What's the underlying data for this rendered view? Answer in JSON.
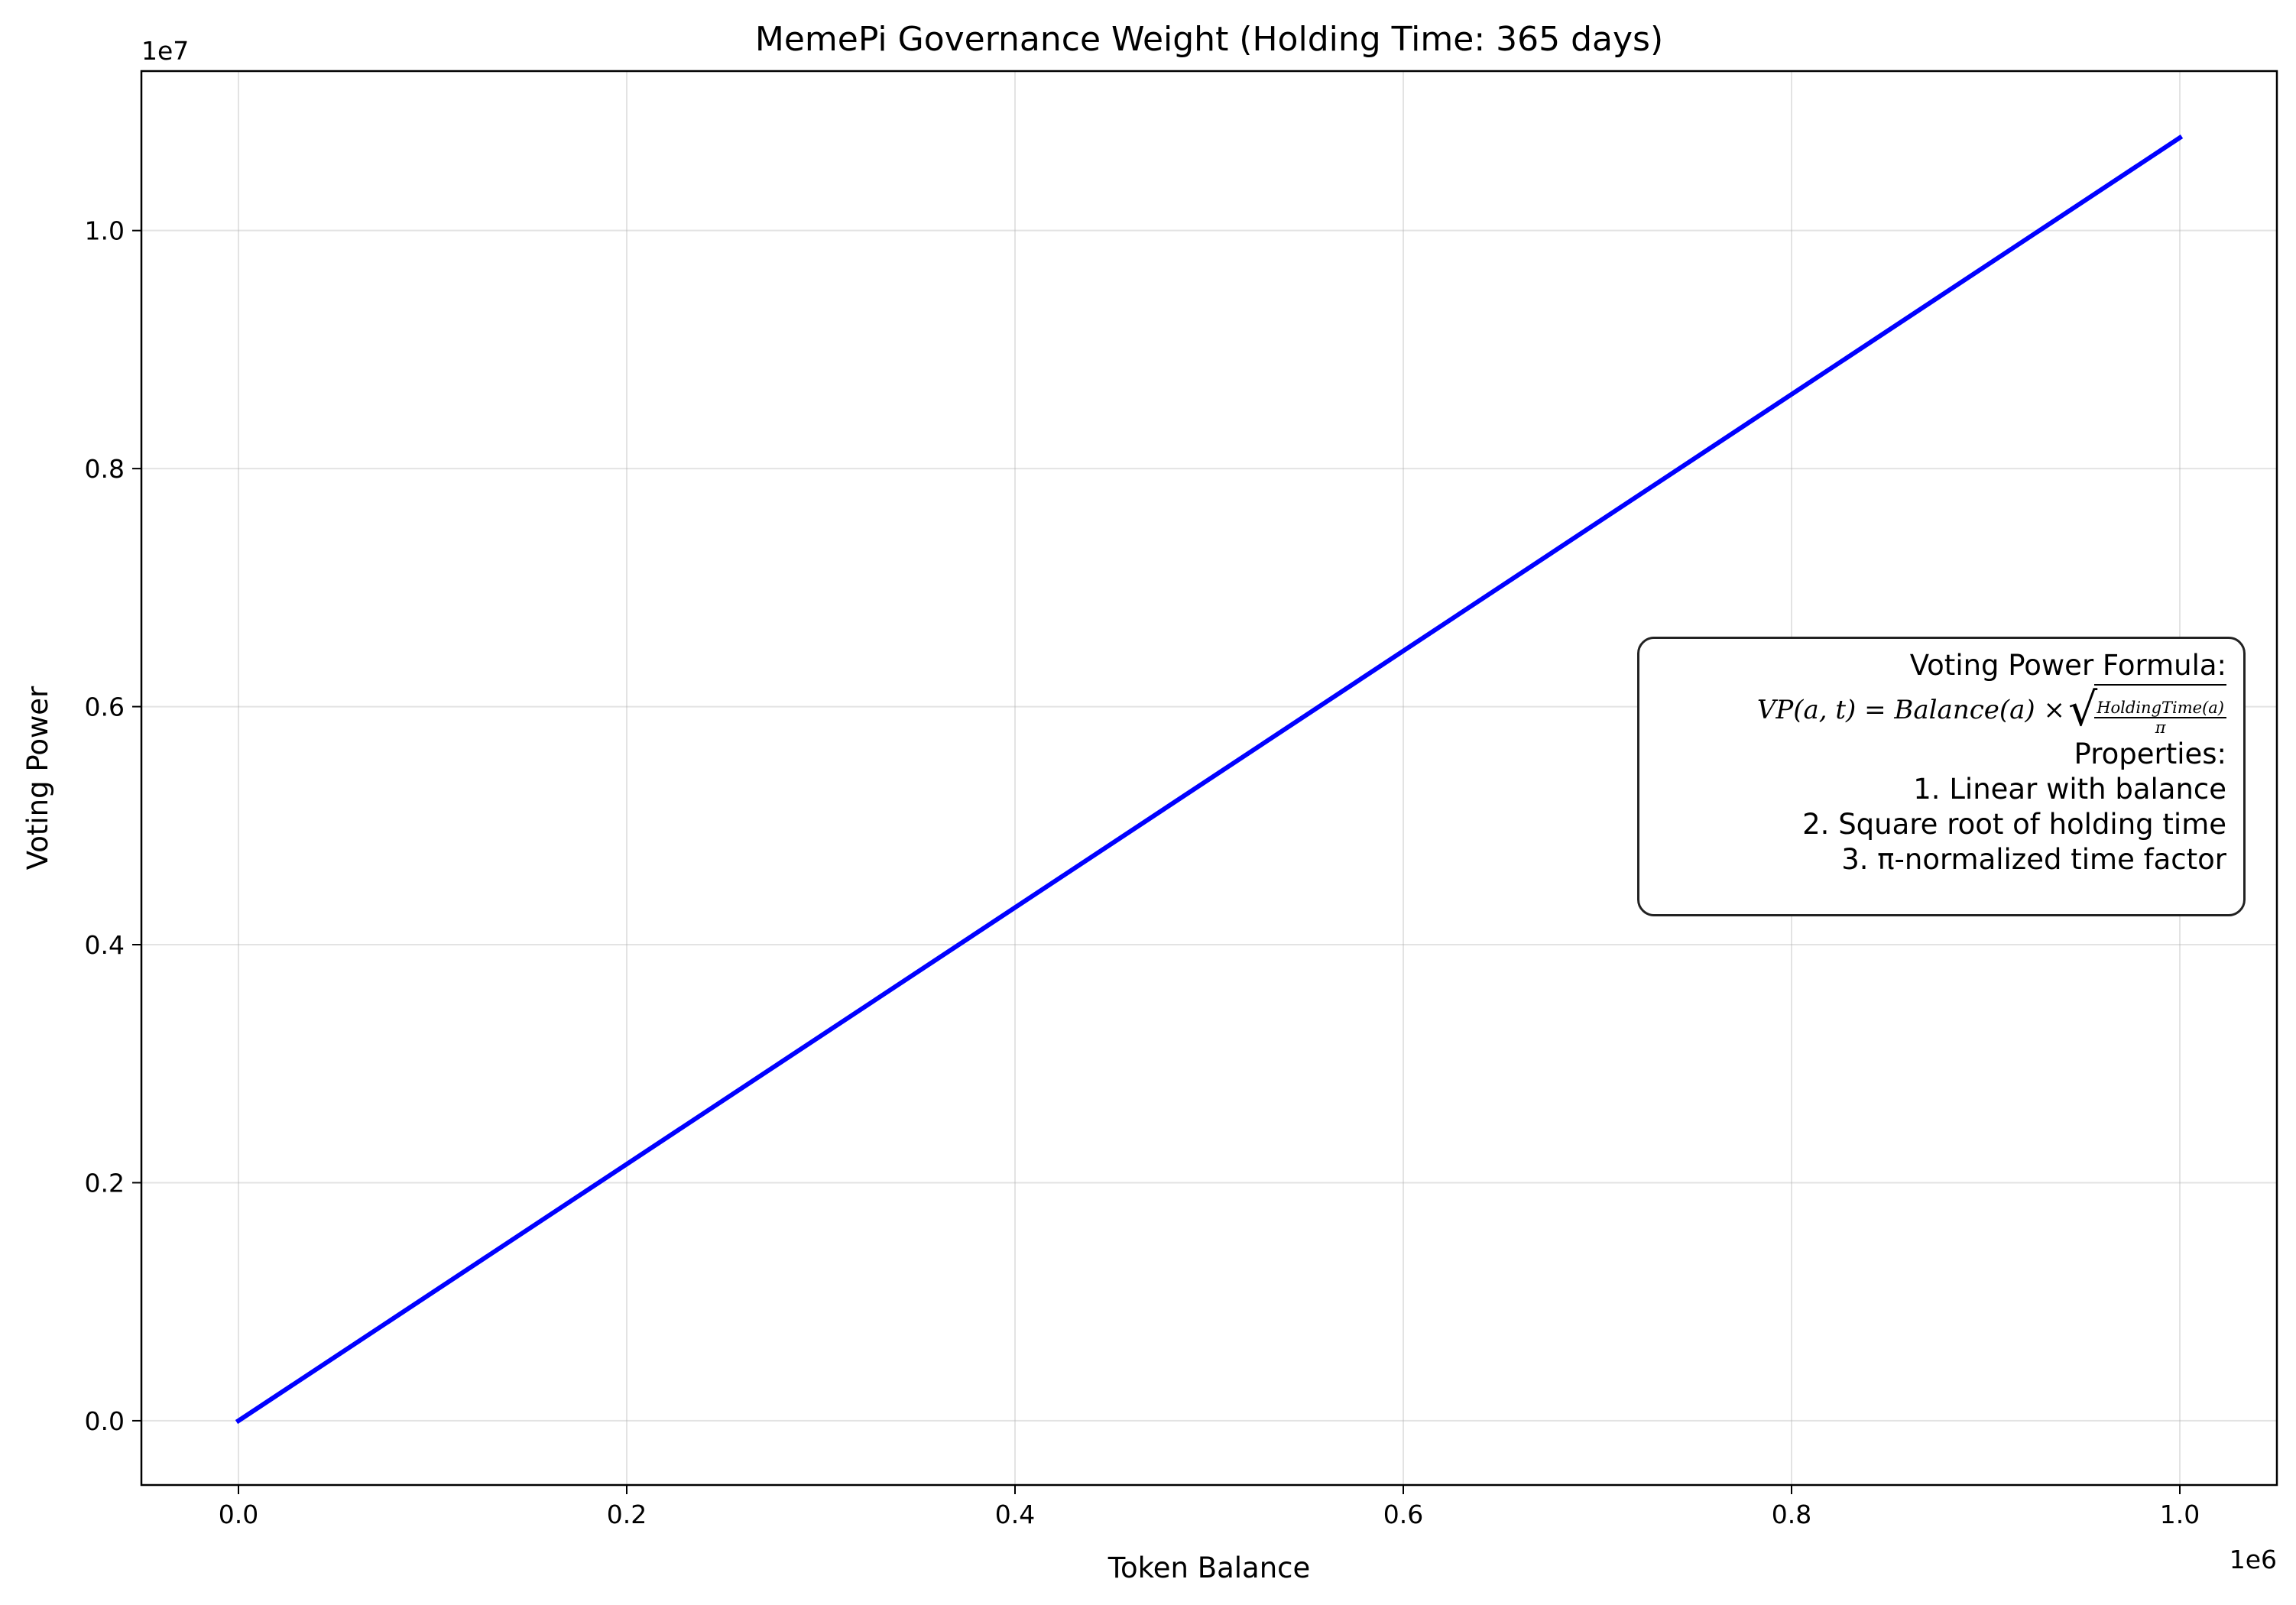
{
  "chart_data": {
    "type": "line",
    "title": "MemePi Governance Weight (Holding Time: 365 days)",
    "xlabel": "Token Balance",
    "ylabel": "Voting Power",
    "x_offset_label": "1e6",
    "y_offset_label": "1e7",
    "xlim": [
      -50000,
      1050000
    ],
    "ylim": [
      -540000,
      11340000
    ],
    "x_ticks": [
      0,
      200000,
      400000,
      600000,
      800000,
      1000000
    ],
    "x_tick_labels": [
      "0.0",
      "0.2",
      "0.4",
      "0.6",
      "0.8",
      "1.0"
    ],
    "y_ticks": [
      0,
      2000000,
      4000000,
      6000000,
      8000000,
      10000000
    ],
    "y_tick_labels": [
      "0.0",
      "0.2",
      "0.4",
      "0.6",
      "0.8",
      "1.0"
    ],
    "grid": true,
    "series": [
      {
        "color": "#0000ff",
        "x": [
          0,
          1000000
        ],
        "y": [
          0,
          10780000
        ]
      }
    ],
    "annotation": {
      "heading": "Voting Power Formula:",
      "formula_lhs": "VP(a, t) = Balance(a) ×",
      "formula_numerator": "HoldingTime(a)",
      "formula_denominator": "π",
      "properties_heading": "Properties:",
      "properties": [
        "1. Linear with balance",
        "2. Square root of holding time",
        "3. π-normalized time factor"
      ]
    }
  }
}
